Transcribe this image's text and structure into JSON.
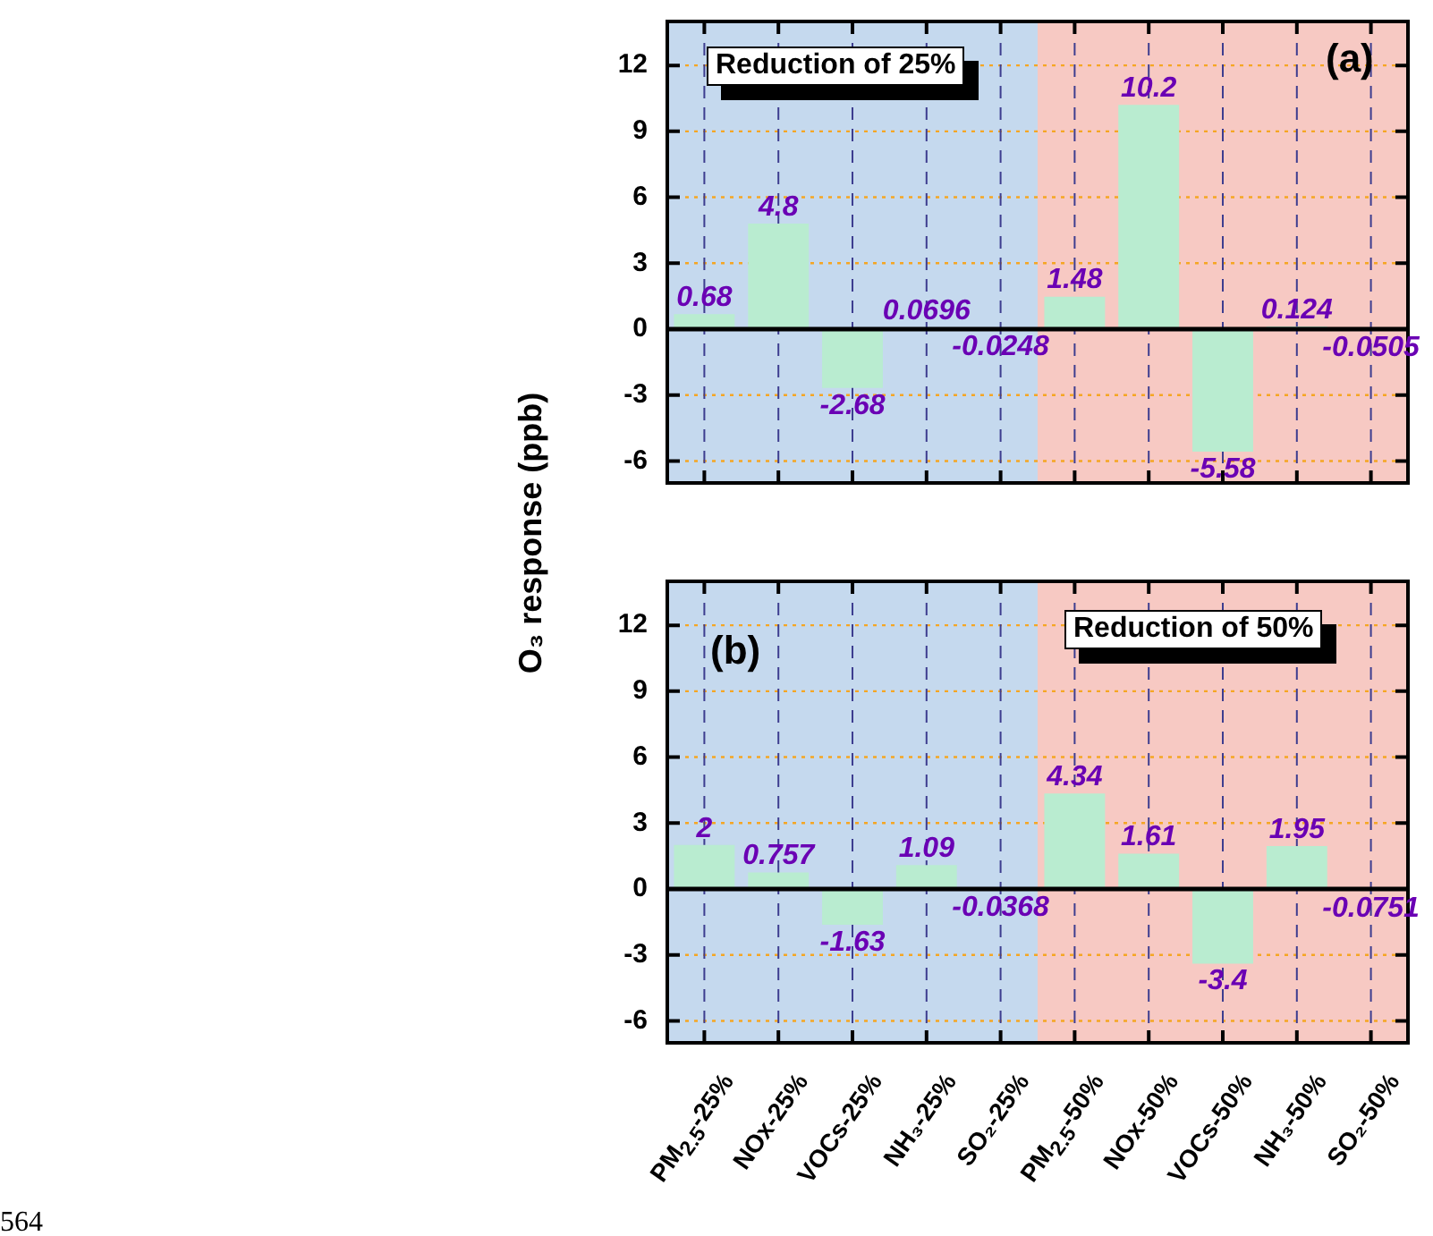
{
  "chart_data": [
    {
      "type": "bar",
      "categories": [
        "PM$_{2.5}$-25%",
        "NOx-25%",
        "VOCs-25%",
        "NH₃-25%",
        "SO₂-25%",
        "PM$_{2.5}$-50%",
        "NOx-50%",
        "VOCs-50%",
        "NH₃-50%",
        "SO₂-50%"
      ],
      "series": [
        {
          "color": "#b9ecd0",
          "values": [
            0.68,
            4.8,
            -2.68,
            0.0696,
            -0.0248,
            1.48,
            10.2,
            -5.58,
            0.124,
            -0.0505
          ]
        }
      ],
      "ylabel": "O₃ response (ppb)",
      "ylim": [
        -7,
        14
      ],
      "yticks": [
        -6,
        -3,
        0,
        3,
        6,
        9,
        12
      ],
      "grid": true,
      "data_labels": true,
      "tick_labels": "y",
      "bands": [
        {
          "axis": "x",
          "from": "PM$_{2.5}$-25%",
          "to": "SO₂-25%",
          "color": "#c5d9ee"
        },
        {
          "axis": "x",
          "from": "PM$_{2.5}$-50%",
          "to": "SO₂-50%",
          "color": "#f7c9c3"
        }
      ],
      "annotations": [
        "Reduction of 25%",
        "(a)"
      ]
    },
    {
      "type": "bar",
      "categories": [
        "PM$_{2.5}$-25%",
        "NOx-25%",
        "VOCs-25%",
        "NH₃-25%",
        "SO₂-25%",
        "PM$_{2.5}$-50%",
        "NOx-50%",
        "VOCs-50%",
        "NH₃-50%",
        "SO₂-50%"
      ],
      "series": [
        {
          "color": "#b9ecd0",
          "values": [
            2,
            0.757,
            -1.63,
            1.09,
            -0.0368,
            4.34,
            1.61,
            -3.4,
            1.95,
            -0.0751
          ]
        }
      ],
      "ylim": [
        -7,
        14
      ],
      "yticks": [
        -6,
        -3,
        0,
        3,
        6,
        9,
        12
      ],
      "grid": true,
      "data_labels": true,
      "bands": [
        {
          "axis": "x",
          "from": "PM$_{2.5}$-25%",
          "to": "SO₂-25%",
          "color": "#c5d9ee"
        },
        {
          "axis": "x",
          "from": "PM$_{2.5}$-50%",
          "to": "SO₂-50%",
          "color": "#f7c9c3"
        }
      ],
      "annotations": [
        "Reduction of 50%",
        "(b)",
        "564"
      ]
    }
  ]
}
